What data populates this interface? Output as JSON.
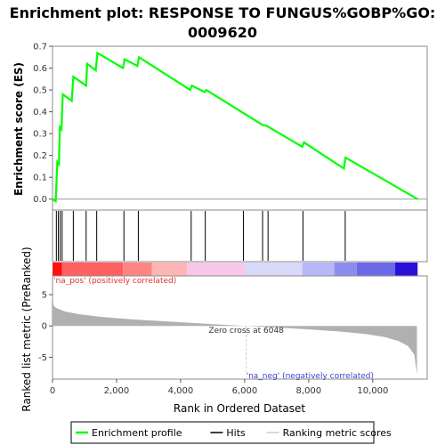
{
  "chart_data": {
    "type": "line",
    "title_line1": "Enrichment plot: RESPONSE TO FUNGUS%GOBP%GO:",
    "title_line2": "0009620",
    "es_ylabel": "Enrichment score (ES)",
    "metric_ylabel": "Ranked list metric (PreRanked)",
    "xlabel": "Rank in Ordered Dataset",
    "x_range": [
      0,
      11700
    ],
    "es_ylim": [
      -0.05,
      0.7
    ],
    "es_ticks": [
      "0.0",
      "0.1",
      "0.2",
      "0.3",
      "0.4",
      "0.5",
      "0.6",
      "0.7"
    ],
    "es_tick_values": [
      0.0,
      0.1,
      0.2,
      0.3,
      0.4,
      0.5,
      0.6,
      0.7
    ],
    "metric_ylim": [
      -8.5,
      8
    ],
    "metric_ticks": [
      "5",
      "0",
      "-5"
    ],
    "metric_tick_values": [
      5,
      0,
      -5
    ],
    "x_ticks": [
      "0",
      "2,000",
      "4,000",
      "6,000",
      "8,000",
      "10,000"
    ],
    "x_tick_values": [
      0,
      2000,
      4000,
      6000,
      8000,
      10000
    ],
    "enrichment_profile": {
      "name": "Enrichment profile",
      "color": "#00ff00",
      "points": [
        [
          0,
          0.0
        ],
        [
          100,
          -0.01
        ],
        [
          150,
          0.17
        ],
        [
          200,
          0.16
        ],
        [
          230,
          0.33
        ],
        [
          280,
          0.32
        ],
        [
          320,
          0.48
        ],
        [
          600,
          0.45
        ],
        [
          650,
          0.56
        ],
        [
          1050,
          0.52
        ],
        [
          1080,
          0.62
        ],
        [
          1350,
          0.59
        ],
        [
          1400,
          0.67
        ],
        [
          2200,
          0.6
        ],
        [
          2250,
          0.64
        ],
        [
          2650,
          0.61
        ],
        [
          2700,
          0.65
        ],
        [
          4300,
          0.5
        ],
        [
          4350,
          0.52
        ],
        [
          4750,
          0.49
        ],
        [
          4800,
          0.5
        ],
        [
          6500,
          0.345
        ],
        [
          6550,
          0.34
        ],
        [
          6700,
          0.335
        ],
        [
          6750,
          0.33
        ],
        [
          7800,
          0.24
        ],
        [
          7850,
          0.26
        ],
        [
          9100,
          0.14
        ],
        [
          9150,
          0.19
        ],
        [
          11400,
          0.0
        ]
      ]
    },
    "hits": [
      120,
      180,
      240,
      300,
      650,
      1050,
      1380,
      2230,
      2680,
      4330,
      4770,
      5960,
      6560,
      6730,
      7820,
      9140
    ],
    "zero_cross_label": "Zero cross at 6048",
    "zero_cross": 6048,
    "pos_label": "'na_pos' (positively correlated)",
    "neg_label": "'na_neg' (negatively correlated)",
    "metric_profile": {
      "name": "Ranking metric scores",
      "color": "#b0b0b0",
      "points": [
        [
          0,
          5.0
        ],
        [
          30,
          3.3
        ],
        [
          80,
          3.0
        ],
        [
          200,
          2.7
        ],
        [
          400,
          2.3
        ],
        [
          800,
          1.9
        ],
        [
          1500,
          1.45
        ],
        [
          2500,
          1.05
        ],
        [
          3500,
          0.75
        ],
        [
          4500,
          0.45
        ],
        [
          5500,
          0.15
        ],
        [
          6048,
          0.0
        ],
        [
          7000,
          -0.25
        ],
        [
          8000,
          -0.55
        ],
        [
          9000,
          -0.9
        ],
        [
          9800,
          -1.3
        ],
        [
          10400,
          -1.8
        ],
        [
          10800,
          -2.4
        ],
        [
          11100,
          -3.2
        ],
        [
          11300,
          -4.6
        ],
        [
          11380,
          -7.8
        ]
      ]
    },
    "ranking_colorbar": [
      {
        "start": 0,
        "end": 300,
        "color": "#ff1010"
      },
      {
        "start": 300,
        "end": 2200,
        "color": "#ff6060"
      },
      {
        "start": 2200,
        "end": 3100,
        "color": "#ff8585"
      },
      {
        "start": 3100,
        "end": 4200,
        "color": "#ffb5b5"
      },
      {
        "start": 4200,
        "end": 6000,
        "color": "#f8c8e8"
      },
      {
        "start": 6000,
        "end": 7800,
        "color": "#d8d8f8"
      },
      {
        "start": 7800,
        "end": 8800,
        "color": "#b8b8f8"
      },
      {
        "start": 8800,
        "end": 9500,
        "color": "#8c8cf0"
      },
      {
        "start": 9500,
        "end": 10700,
        "color": "#6a6ae8"
      },
      {
        "start": 10700,
        "end": 11400,
        "color": "#2a10d8"
      }
    ],
    "legend": {
      "items": [
        {
          "label": "Enrichment profile",
          "color": "#00ff00"
        },
        {
          "label": "Hits",
          "color": "#000000"
        },
        {
          "label": "Ranking metric scores",
          "color": "#cccccc"
        }
      ]
    }
  }
}
